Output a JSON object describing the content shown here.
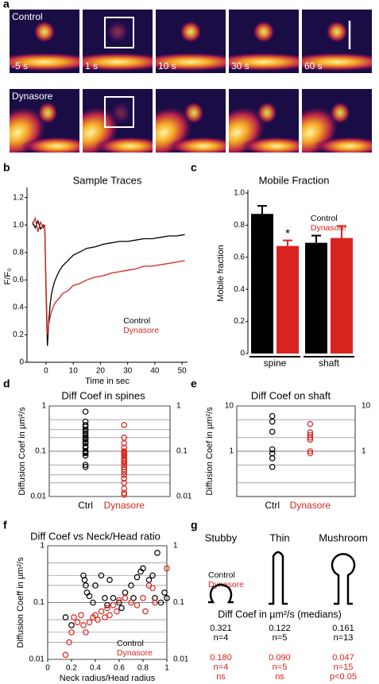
{
  "panel_labels": [
    "a",
    "b",
    "c",
    "d",
    "e",
    "f",
    "g"
  ],
  "images": {
    "row_labels": [
      "Control",
      "Dynasore"
    ],
    "times": [
      "-5 s",
      "1 s",
      "10 s",
      "30 s",
      "60 s"
    ]
  },
  "chart_data": [
    {
      "type": "line",
      "title": "Sample Traces",
      "y_label": "F/F₀",
      "x_label": "Time in sec",
      "x": [
        -5,
        -4,
        -3,
        -2,
        -1,
        -0.5,
        0,
        0.5,
        1,
        1.5,
        2,
        3,
        4,
        5,
        6,
        8,
        10,
        12,
        15,
        18,
        21,
        24,
        27,
        30,
        33,
        36,
        39,
        42,
        45,
        48,
        51
      ],
      "series": [
        {
          "name": "Control",
          "color": "#000000",
          "values": [
            1.02,
            0.98,
            1.03,
            0.97,
            1.0,
            0.99,
            0.5,
            0.12,
            0.3,
            0.42,
            0.5,
            0.58,
            0.63,
            0.67,
            0.7,
            0.74,
            0.78,
            0.8,
            0.83,
            0.84,
            0.86,
            0.87,
            0.88,
            0.88,
            0.89,
            0.9,
            0.9,
            0.91,
            0.92,
            0.92,
            0.93
          ]
        },
        {
          "name": "Dynasore",
          "color": "#d8241f",
          "values": [
            1.0,
            1.05,
            0.95,
            1.02,
            0.98,
            1.0,
            0.55,
            0.2,
            0.28,
            0.33,
            0.37,
            0.42,
            0.45,
            0.47,
            0.5,
            0.52,
            0.56,
            0.57,
            0.6,
            0.62,
            0.63,
            0.65,
            0.66,
            0.67,
            0.68,
            0.7,
            0.7,
            0.71,
            0.72,
            0.73,
            0.74
          ]
        }
      ],
      "xlim": [
        -7,
        52
      ],
      "xticks": [
        0,
        10,
        20,
        30,
        40,
        50
      ],
      "ylim": [
        0,
        1.25
      ],
      "yticks": [
        0,
        0.2,
        0.4,
        0.6,
        0.8,
        {
          "value": 1,
          "label": "1.0"
        },
        1.2
      ],
      "legend": "lower right"
    },
    {
      "type": "bar",
      "title": "Mobile Fraction",
      "y_label": "Mobile fraction",
      "categories": [
        "spine",
        "shaft"
      ],
      "series": [
        {
          "name": "Control",
          "color": "#000000",
          "values": [
            0.87,
            0.69
          ],
          "errors": [
            0.05,
            0.045
          ]
        },
        {
          "name": "Dynasore",
          "color": "#d8241f",
          "values": [
            0.67,
            0.72
          ],
          "errors": [
            0.035,
            0.075
          ]
        }
      ],
      "ylim": [
        0,
        1
      ],
      "yticks": [
        0,
        0.2,
        0.4,
        0.6,
        0.8,
        {
          "value": 1,
          "label": "1.0"
        }
      ],
      "annotation": "*",
      "legend": "upper right"
    },
    {
      "type": "strip",
      "title": "Diff Coef in spines",
      "y_label": "Diffusion Coef in µm²/s",
      "categories": [
        "Ctrl",
        "Dynasore"
      ],
      "colors": [
        "#000000",
        "#d8241f"
      ],
      "values": [
        [
          0.75,
          0.45,
          0.38,
          0.35,
          0.3,
          0.28,
          0.25,
          0.22,
          0.2,
          0.19,
          0.18,
          0.16,
          0.15,
          0.13,
          0.12,
          0.1,
          0.095,
          0.09,
          0.08,
          0.05,
          0.045
        ],
        [
          0.38,
          0.2,
          0.15,
          0.12,
          0.1,
          0.095,
          0.09,
          0.085,
          0.08,
          0.07,
          0.065,
          0.06,
          0.055,
          0.05,
          0.045,
          0.04,
          0.035,
          0.03,
          0.025,
          0.02,
          0.015,
          0.012,
          0.011
        ]
      ],
      "log": true,
      "ylim": [
        0.01,
        1
      ],
      "yticks": [
        0.01,
        0.1,
        1
      ],
      "grid_lines": [
        0.02,
        0.03,
        0.05,
        0.2,
        0.3,
        0.5
      ]
    },
    {
      "type": "strip",
      "title": "Diff Coef on shaft",
      "y_label": "Diffusion Coef in µm²/s",
      "categories": [
        "Ctrl",
        "Dynasore"
      ],
      "colors": [
        "#000000",
        "#d8241f"
      ],
      "values": [
        [
          6,
          4.5,
          2.7,
          1.1,
          0.9,
          0.7,
          0.45
        ],
        [
          4,
          2.6,
          2.3,
          2,
          1.8,
          1,
          0.9
        ]
      ],
      "log": true,
      "ylim": [
        0.1,
        10
      ],
      "yticks": [
        1,
        10
      ],
      "grid_lines": [
        0.2,
        0.5,
        2,
        5
      ]
    },
    {
      "type": "scatter",
      "title": "Diff Coef vs Neck/Head ratio",
      "y_label": "Diffusion Coeff in µm²/s",
      "x_label": "Neck radius/Head radius",
      "series": [
        {
          "name": "Control",
          "color": "#000000",
          "x": [
            0.15,
            0.2,
            0.3,
            0.31,
            0.32,
            0.33,
            0.35,
            0.38,
            0.4,
            0.45,
            0.48,
            0.5,
            0.52,
            0.55,
            0.6,
            0.62,
            0.65,
            0.7,
            0.72,
            0.75,
            0.78,
            0.8,
            0.85,
            0.88,
            0.9,
            0.92,
            0.95,
            0.98,
            1.0
          ],
          "values": [
            0.055,
            0.04,
            0.3,
            0.25,
            0.2,
            0.15,
            0.13,
            0.1,
            0.2,
            0.3,
            0.12,
            0.09,
            0.25,
            0.12,
            0.1,
            0.08,
            0.15,
            0.2,
            0.12,
            0.28,
            0.35,
            0.4,
            0.25,
            0.3,
            0.12,
            0.75,
            0.1,
            0.15,
            0.12
          ]
        },
        {
          "name": "Dynasore",
          "color": "#d8241f",
          "x": [
            0.15,
            0.18,
            0.2,
            0.22,
            0.25,
            0.28,
            0.3,
            0.32,
            0.35,
            0.38,
            0.4,
            0.42,
            0.45,
            0.48,
            0.5,
            0.52,
            0.55,
            0.58,
            0.6,
            0.65,
            0.7,
            0.75,
            0.8,
            0.82,
            0.85,
            0.88,
            0.9,
            1.0
          ],
          "values": [
            0.012,
            0.02,
            0.03,
            0.055,
            0.045,
            0.06,
            0.04,
            0.03,
            0.045,
            0.055,
            0.06,
            0.05,
            0.07,
            0.055,
            0.08,
            0.06,
            0.09,
            0.07,
            0.11,
            0.12,
            0.1,
            0.09,
            0.12,
            0.07,
            0.2,
            0.18,
            0.1,
            0.4
          ]
        }
      ],
      "log": true,
      "xlim": [
        0,
        1
      ],
      "xticks": [
        0,
        0.2,
        0.4,
        0.6,
        0.8,
        1
      ],
      "ylim": [
        0.01,
        1
      ],
      "yticks": [
        0.01,
        0.1,
        1
      ],
      "grid_lines": [
        0.02,
        0.03,
        0.05,
        0.2,
        0.3,
        0.5
      ],
      "legend": "lower right"
    }
  ],
  "morphology": {
    "shapes": [
      "Stubby",
      "Thin",
      "Mushroom"
    ],
    "legend": [
      "Control",
      "Dynasore"
    ],
    "heading": "Diff Coef in µm²/s (medians)",
    "control": [
      [
        "0.321",
        "n=4"
      ],
      [
        "0.122",
        "n=5"
      ],
      [
        "0.161",
        "n=13"
      ]
    ],
    "dynasore": [
      [
        "0.180",
        "n=4",
        "ns"
      ],
      [
        "0.090",
        "n=5",
        "ns"
      ],
      [
        "0.047",
        "n=15",
        "p<0.05"
      ]
    ]
  }
}
